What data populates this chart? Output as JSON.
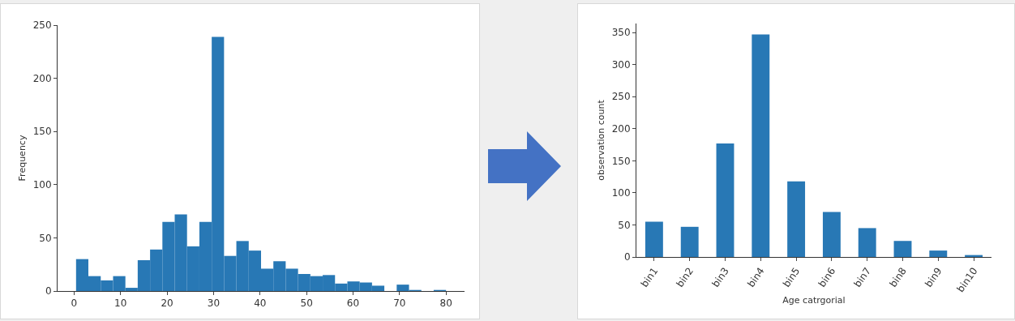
{
  "chart_data": [
    {
      "type": "histogram",
      "ylabel": "Frequency",
      "color": "#2878b5",
      "bins": [
        0.42,
        3.07,
        5.73,
        8.38,
        11.03,
        13.68,
        16.34,
        18.99,
        21.64,
        24.29,
        26.95,
        29.6,
        32.25,
        34.9,
        37.56,
        40.21,
        42.86,
        45.51,
        48.17,
        50.82,
        53.47,
        56.12,
        58.78,
        61.43,
        64.08,
        66.73,
        69.39,
        72.04,
        74.69,
        77.34,
        80
      ],
      "values": [
        30,
        14,
        10,
        14,
        3,
        29,
        39,
        65,
        72,
        42,
        65,
        239,
        33,
        47,
        38,
        21,
        28,
        21,
        16,
        14,
        15,
        7,
        9,
        8,
        5,
        0,
        6,
        1,
        0,
        1
      ],
      "xlim": [
        -3.56,
        83.98
      ],
      "xticks": [
        0,
        10,
        20,
        30,
        40,
        50,
        60,
        70,
        80
      ],
      "ylim": [
        0,
        250
      ],
      "yticks": [
        0,
        50,
        100,
        150,
        200,
        250
      ]
    },
    {
      "type": "bar",
      "xlabel": "Age catrgorial",
      "ylabel": "observation count",
      "color": "#2878b5",
      "categories": [
        "bin1",
        "bin2",
        "bin3",
        "bin4",
        "bin5",
        "bin6",
        "bin7",
        "bin8",
        "bin9",
        "bin10"
      ],
      "values": [
        55,
        47,
        177,
        347,
        118,
        70,
        45,
        25,
        10,
        3
      ],
      "ylim": [
        0,
        364
      ],
      "yticks": [
        0,
        50,
        100,
        150,
        200,
        250,
        300,
        350
      ]
    }
  ]
}
